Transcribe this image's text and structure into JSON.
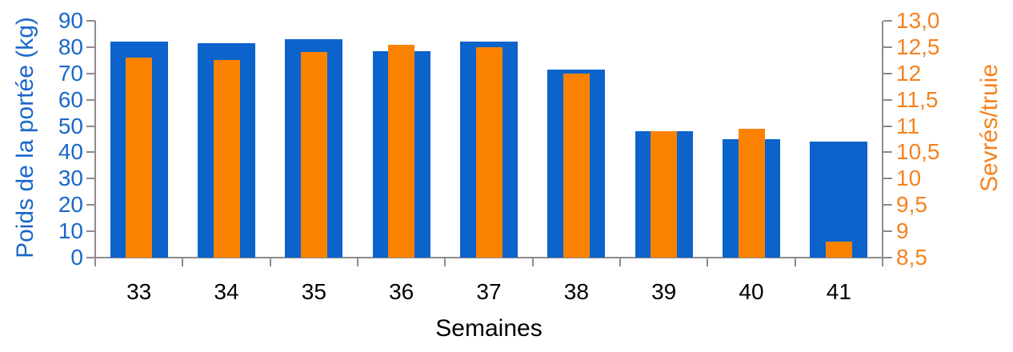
{
  "chart_data": {
    "type": "bar",
    "title": "",
    "xlabel": "Semaines",
    "categories": [
      "33",
      "34",
      "35",
      "36",
      "37",
      "38",
      "39",
      "40",
      "41"
    ],
    "series": [
      {
        "name": "Poids de la portée (kg)",
        "axis": "left",
        "color": "#0B63CB",
        "values": [
          82,
          81.5,
          83,
          78.5,
          82,
          71.5,
          48,
          45,
          44
        ]
      },
      {
        "name": "Sevrés/truie",
        "axis": "right",
        "color": "#FB8200",
        "values": [
          12.3,
          12.25,
          12.4,
          12.55,
          12.5,
          12.0,
          10.9,
          10.95,
          8.8
        ]
      }
    ],
    "left_axis": {
      "label": "Poids de la portée (kg)",
      "min": 0,
      "max": 90,
      "tick_step": 10,
      "ticks": [
        "90",
        "80",
        "70",
        "60",
        "50",
        "40",
        "30",
        "20",
        "10",
        "0"
      ],
      "color": "#1A67C9"
    },
    "right_axis": {
      "label": "Sevrés/truie",
      "min": 8.5,
      "max": 13.0,
      "tick_step": 0.5,
      "ticks": [
        "13,0",
        "12,5",
        "12",
        "11,5",
        "11",
        "10,5",
        "10",
        "9,5",
        "9",
        "8,5"
      ],
      "color": "#F5821F"
    },
    "axis_line_color": "#8C8C8C",
    "grid": false,
    "legend": "none"
  }
}
